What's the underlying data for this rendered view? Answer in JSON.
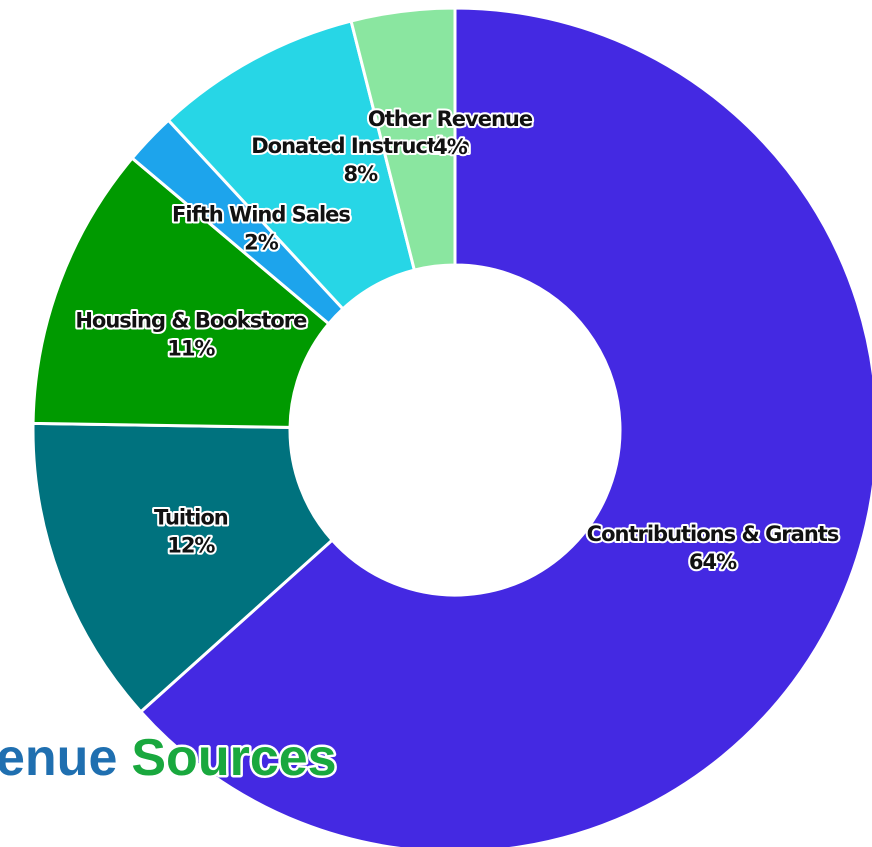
{
  "chart_data": {
    "type": "donut",
    "title_parts": [
      "enue",
      "Sources"
    ],
    "title_colors": [
      "#1f6fb0",
      "#19a83e"
    ],
    "categories": [
      "Contributions & Grants",
      "Tuition",
      "Housing & Bookstore",
      "Fifth Wind Sales",
      "Donated Instruction",
      "Other Revenue"
    ],
    "values": [
      64,
      12,
      11,
      2,
      8,
      4
    ],
    "value_labels": [
      "64%",
      "12%",
      "11%",
      "2%",
      "8%",
      "4%"
    ],
    "colors": [
      "#4429e2",
      "#00727e",
      "#009a00",
      "#1da4ec",
      "#27d6e6",
      "#8ae6a0"
    ]
  }
}
